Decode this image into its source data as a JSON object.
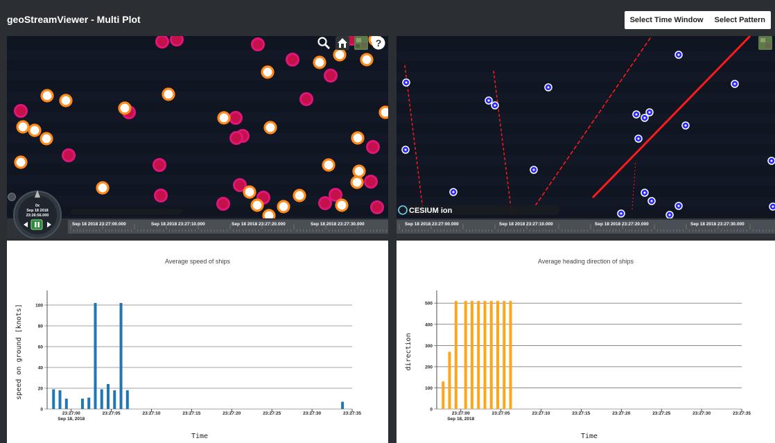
{
  "app": {
    "title": "geoStreamViewer - Multi Plot",
    "buttons": [
      "Select Time Window",
      "Select Pattern"
    ]
  },
  "map_left": {
    "timeline_ticks": [
      "Sep 18 2018 23:27:00.000",
      "Sep 18 2018 23:27:10.000",
      "Sep 18 2018 23:27:20.000",
      "Sep 18 2018 23:27:30.000"
    ],
    "clock": {
      "speed": "0x",
      "date": "Sep 18 2018",
      "time": "23:26:56.000"
    },
    "toolbar_icons": [
      "search-icon",
      "home-icon",
      "layers-icon",
      "help-icon"
    ],
    "colors": {
      "magenta_ring": "#e0157a",
      "magenta_fill": "#c4114a",
      "orange_ring": "#ff8a1c",
      "white_fill": "#ffffff"
    }
  },
  "map_right": {
    "timeline_ticks": [
      "Sep 18 2018 23:27:00.000",
      "Sep 18 2018 23:27:10.000",
      "Sep 18 2018 23:27:20.000",
      "Sep 18 2018 23:27:30.000"
    ],
    "credit_logo": "CESIUM ion",
    "toolbar_icons": [
      "layers-icon"
    ],
    "colors": {
      "ship_dot": "#2a2aff",
      "track": "#ff1a1a"
    }
  },
  "chart_data": [
    {
      "type": "bar",
      "title": "Average speed of ships",
      "xlabel": "Time",
      "ylabel": "speed on ground [knots]",
      "ylim": [
        0,
        110
      ],
      "yticks": [
        "0",
        "20",
        "40",
        "60",
        "80",
        "100"
      ],
      "xticks": [
        "23:27:00",
        "23:27:05",
        "23:27:10",
        "23:27:15",
        "23:27:20",
        "23:27:25",
        "23:27:30",
        "23:27:35"
      ],
      "date_label": "Sep 18, 2018",
      "color": "#1f77b4",
      "x": [
        -2.2,
        -1.4,
        -0.6,
        1.4,
        2.2,
        3.0,
        3.8,
        4.6,
        5.4,
        6.2,
        7.0,
        33.8
      ],
      "values": [
        19,
        18,
        10,
        10,
        11,
        102,
        19,
        24,
        18,
        102,
        18,
        7
      ]
    },
    {
      "type": "bar",
      "title": "Average heading direction of ships",
      "xlabel": "Time",
      "ylabel": "direction",
      "ylim": [
        0,
        540
      ],
      "yticks": [
        "0",
        "100",
        "200",
        "300",
        "400",
        "500"
      ],
      "xticks": [
        "23:27:00",
        "23:27:05",
        "23:27:10",
        "23:27:15",
        "23:27:20",
        "23:27:25",
        "23:27:30",
        "23:27:35"
      ],
      "date_label": "Sep 18, 2018",
      "color": "#ffa51a",
      "x": [
        -2.2,
        -1.4,
        -0.6,
        0.6,
        1.4,
        2.2,
        3.0,
        3.8,
        4.6,
        5.4,
        6.2
      ],
      "values": [
        130,
        270,
        510,
        510,
        510,
        510,
        510,
        510,
        510,
        510,
        510
      ]
    }
  ]
}
